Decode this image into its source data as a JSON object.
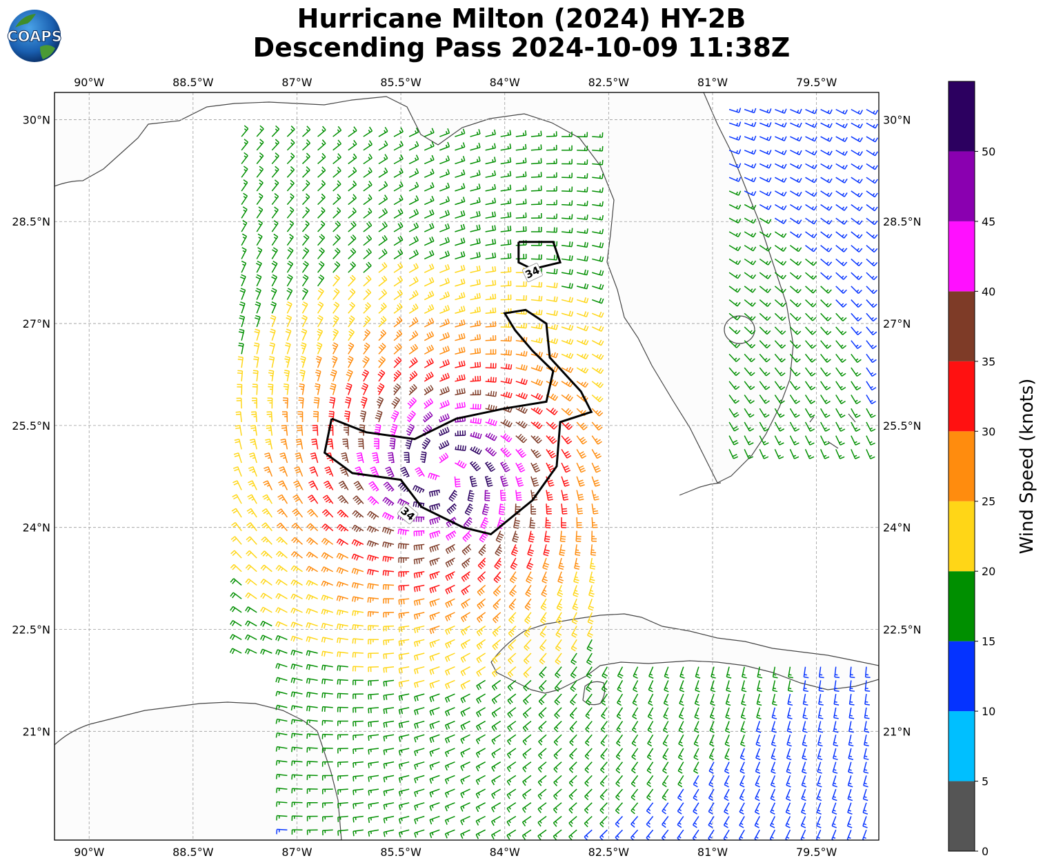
{
  "title": {
    "line1": "Hurricane Milton (2024) HY-2B",
    "line2": "Descending Pass 2024-10-09 11:38Z"
  },
  "logo": {
    "text": "COAPS",
    "icon": "globe-logo-icon"
  },
  "map": {
    "lon_range": [
      -90.5,
      -78.6
    ],
    "lat_range": [
      19.4,
      30.4
    ],
    "x_ticks": [
      {
        "lon": -90.0,
        "label": "90°W"
      },
      {
        "lon": -88.5,
        "label": "88.5°W"
      },
      {
        "lon": -87.0,
        "label": "87°W"
      },
      {
        "lon": -85.5,
        "label": "85.5°W"
      },
      {
        "lon": -84.0,
        "label": "84°W"
      },
      {
        "lon": -82.5,
        "label": "82.5°W"
      },
      {
        "lon": -81.0,
        "label": "81°W"
      },
      {
        "lon": -79.5,
        "label": "79.5°W"
      }
    ],
    "y_ticks": [
      {
        "lat": 30.0,
        "label": "30°N"
      },
      {
        "lat": 28.5,
        "label": "28.5°N"
      },
      {
        "lat": 27.0,
        "label": "27°N"
      },
      {
        "lat": 25.5,
        "label": "25.5°N"
      },
      {
        "lat": 24.0,
        "label": "24°N"
      },
      {
        "lat": 22.5,
        "label": "22.5°N"
      },
      {
        "lat": 21.0,
        "label": "21°N"
      }
    ],
    "gridlines": true,
    "storm_center": {
      "lon": -84.9,
      "lat": 24.8
    },
    "contour_34kt": {
      "label": "34",
      "outer": [
        [
          -86.5,
          25.6
        ],
        [
          -86.0,
          25.4
        ],
        [
          -85.3,
          25.3
        ],
        [
          -84.7,
          25.6
        ],
        [
          -84.0,
          25.75
        ],
        [
          -83.4,
          25.85
        ],
        [
          -83.3,
          26.3
        ],
        [
          -83.6,
          26.6
        ],
        [
          -83.85,
          26.9
        ],
        [
          -84.0,
          27.15
        ],
        [
          -83.7,
          27.2
        ],
        [
          -83.4,
          27.0
        ],
        [
          -83.35,
          26.5
        ],
        [
          -82.9,
          26.0
        ],
        [
          -82.75,
          25.7
        ],
        [
          -83.2,
          25.55
        ],
        [
          -83.25,
          24.9
        ],
        [
          -83.6,
          24.4
        ],
        [
          -84.2,
          23.9
        ],
        [
          -84.6,
          24.0
        ],
        [
          -85.2,
          24.3
        ],
        [
          -85.5,
          24.7
        ],
        [
          -86.2,
          24.8
        ],
        [
          -86.6,
          25.1
        ],
        [
          -86.5,
          25.6
        ]
      ],
      "small": [
        [
          -83.8,
          28.2
        ],
        [
          -83.3,
          28.2
        ],
        [
          -83.2,
          27.9
        ],
        [
          -83.6,
          27.8
        ],
        [
          -83.8,
          27.9
        ],
        [
          -83.8,
          28.2
        ]
      ]
    }
  },
  "colorbar": {
    "label": "Wind Speed (knots)",
    "ticks": [
      "0",
      "5",
      "10",
      "15",
      "20",
      "25",
      "30",
      "35",
      "40",
      "45",
      "50"
    ],
    "colors": [
      "#565656",
      "#00bfff",
      "#0032ff",
      "#00ff00",
      "#ffd700",
      "#ff8c00",
      "#ff0000",
      "#8b4513",
      "#ff00ff",
      "#9400d3",
      "#2e0854"
    ],
    "bar_colors": [
      "#555555",
      "#00bfff",
      "#0533ff",
      "#008f00",
      "#ffd617",
      "#ff8c0e",
      "#ff1111",
      "#7e3b27",
      "#ff10ff",
      "#8a00b0",
      "#2c0060"
    ],
    "max": 55
  },
  "chart_data": {
    "type": "wind_barbs",
    "title": "Hurricane Milton (2024) HY-2B Descending Pass 2024-10-09 11:38Z",
    "units": "knots",
    "center": {
      "lon": -84.9,
      "lat": 24.8
    },
    "swaths": [
      {
        "name": "west",
        "lon_min": -87.8,
        "lon_max": -82.6,
        "lat_min": 22.0,
        "lat_max": 29.9
      },
      {
        "name": "east-north",
        "lon_min": -80.8,
        "lon_max": -78.6,
        "lat_min": 25.0,
        "lat_max": 30.3
      },
      {
        "name": "south",
        "lon_min": -87.3,
        "lon_max": -78.6,
        "lat_min": 19.5,
        "lat_max": 22.0
      }
    ]
  }
}
